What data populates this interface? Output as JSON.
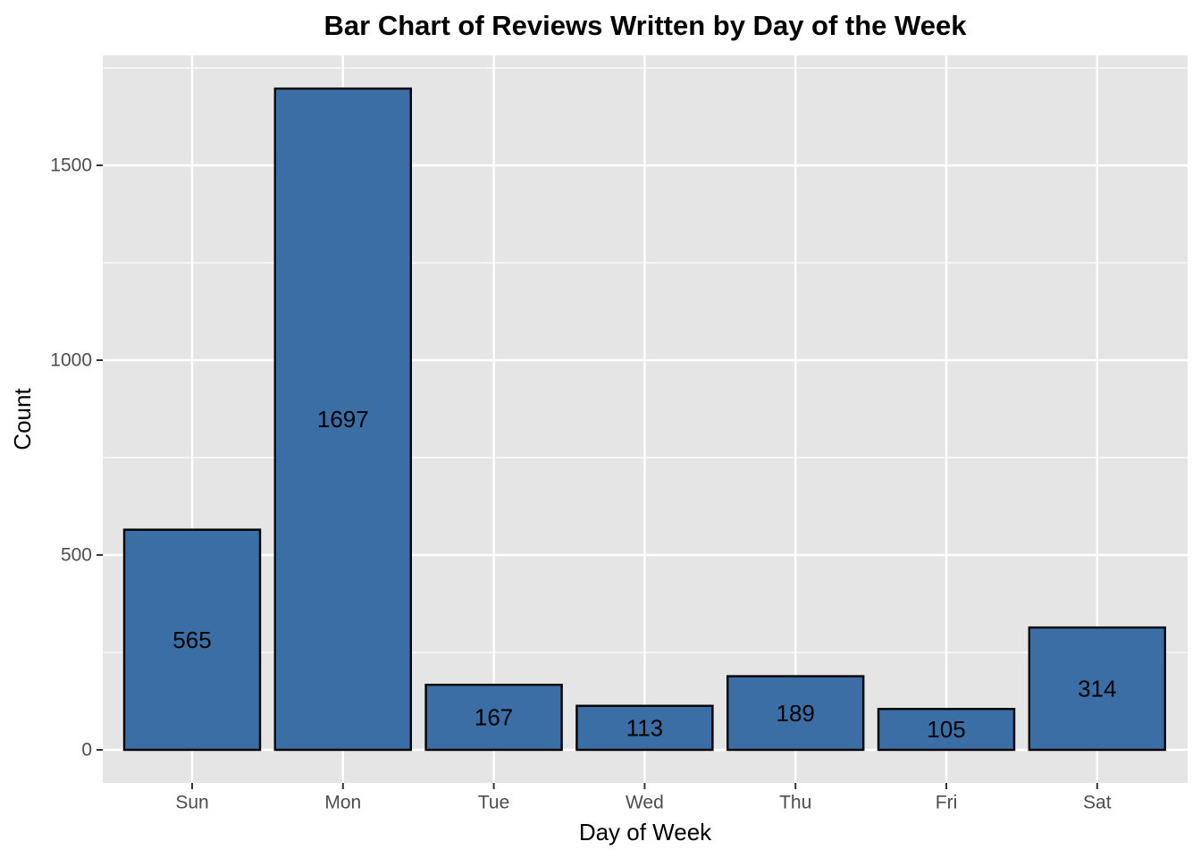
{
  "chart_data": {
    "type": "bar",
    "title": "Bar Chart of Reviews Written by Day of the Week",
    "xlabel": "Day of Week",
    "ylabel": "Count",
    "categories": [
      "Sun",
      "Mon",
      "Tue",
      "Wed",
      "Thu",
      "Fri",
      "Sat"
    ],
    "values": [
      565,
      1697,
      167,
      113,
      189,
      105,
      314
    ],
    "data_labels": [
      "565",
      "1697",
      "167",
      "113",
      "189",
      "105",
      "314"
    ],
    "yticks": [
      0,
      500,
      1000,
      1500
    ],
    "ytick_labels": [
      "0",
      "500",
      "1000",
      "1500"
    ],
    "ylim": [
      -85,
      1782
    ],
    "grid": true,
    "legend": "none",
    "colors": {
      "bar_fill": "#3a6ea5",
      "bar_stroke": "#000000",
      "panel_background": "#e5e5e5",
      "grid": "#ffffff"
    }
  }
}
